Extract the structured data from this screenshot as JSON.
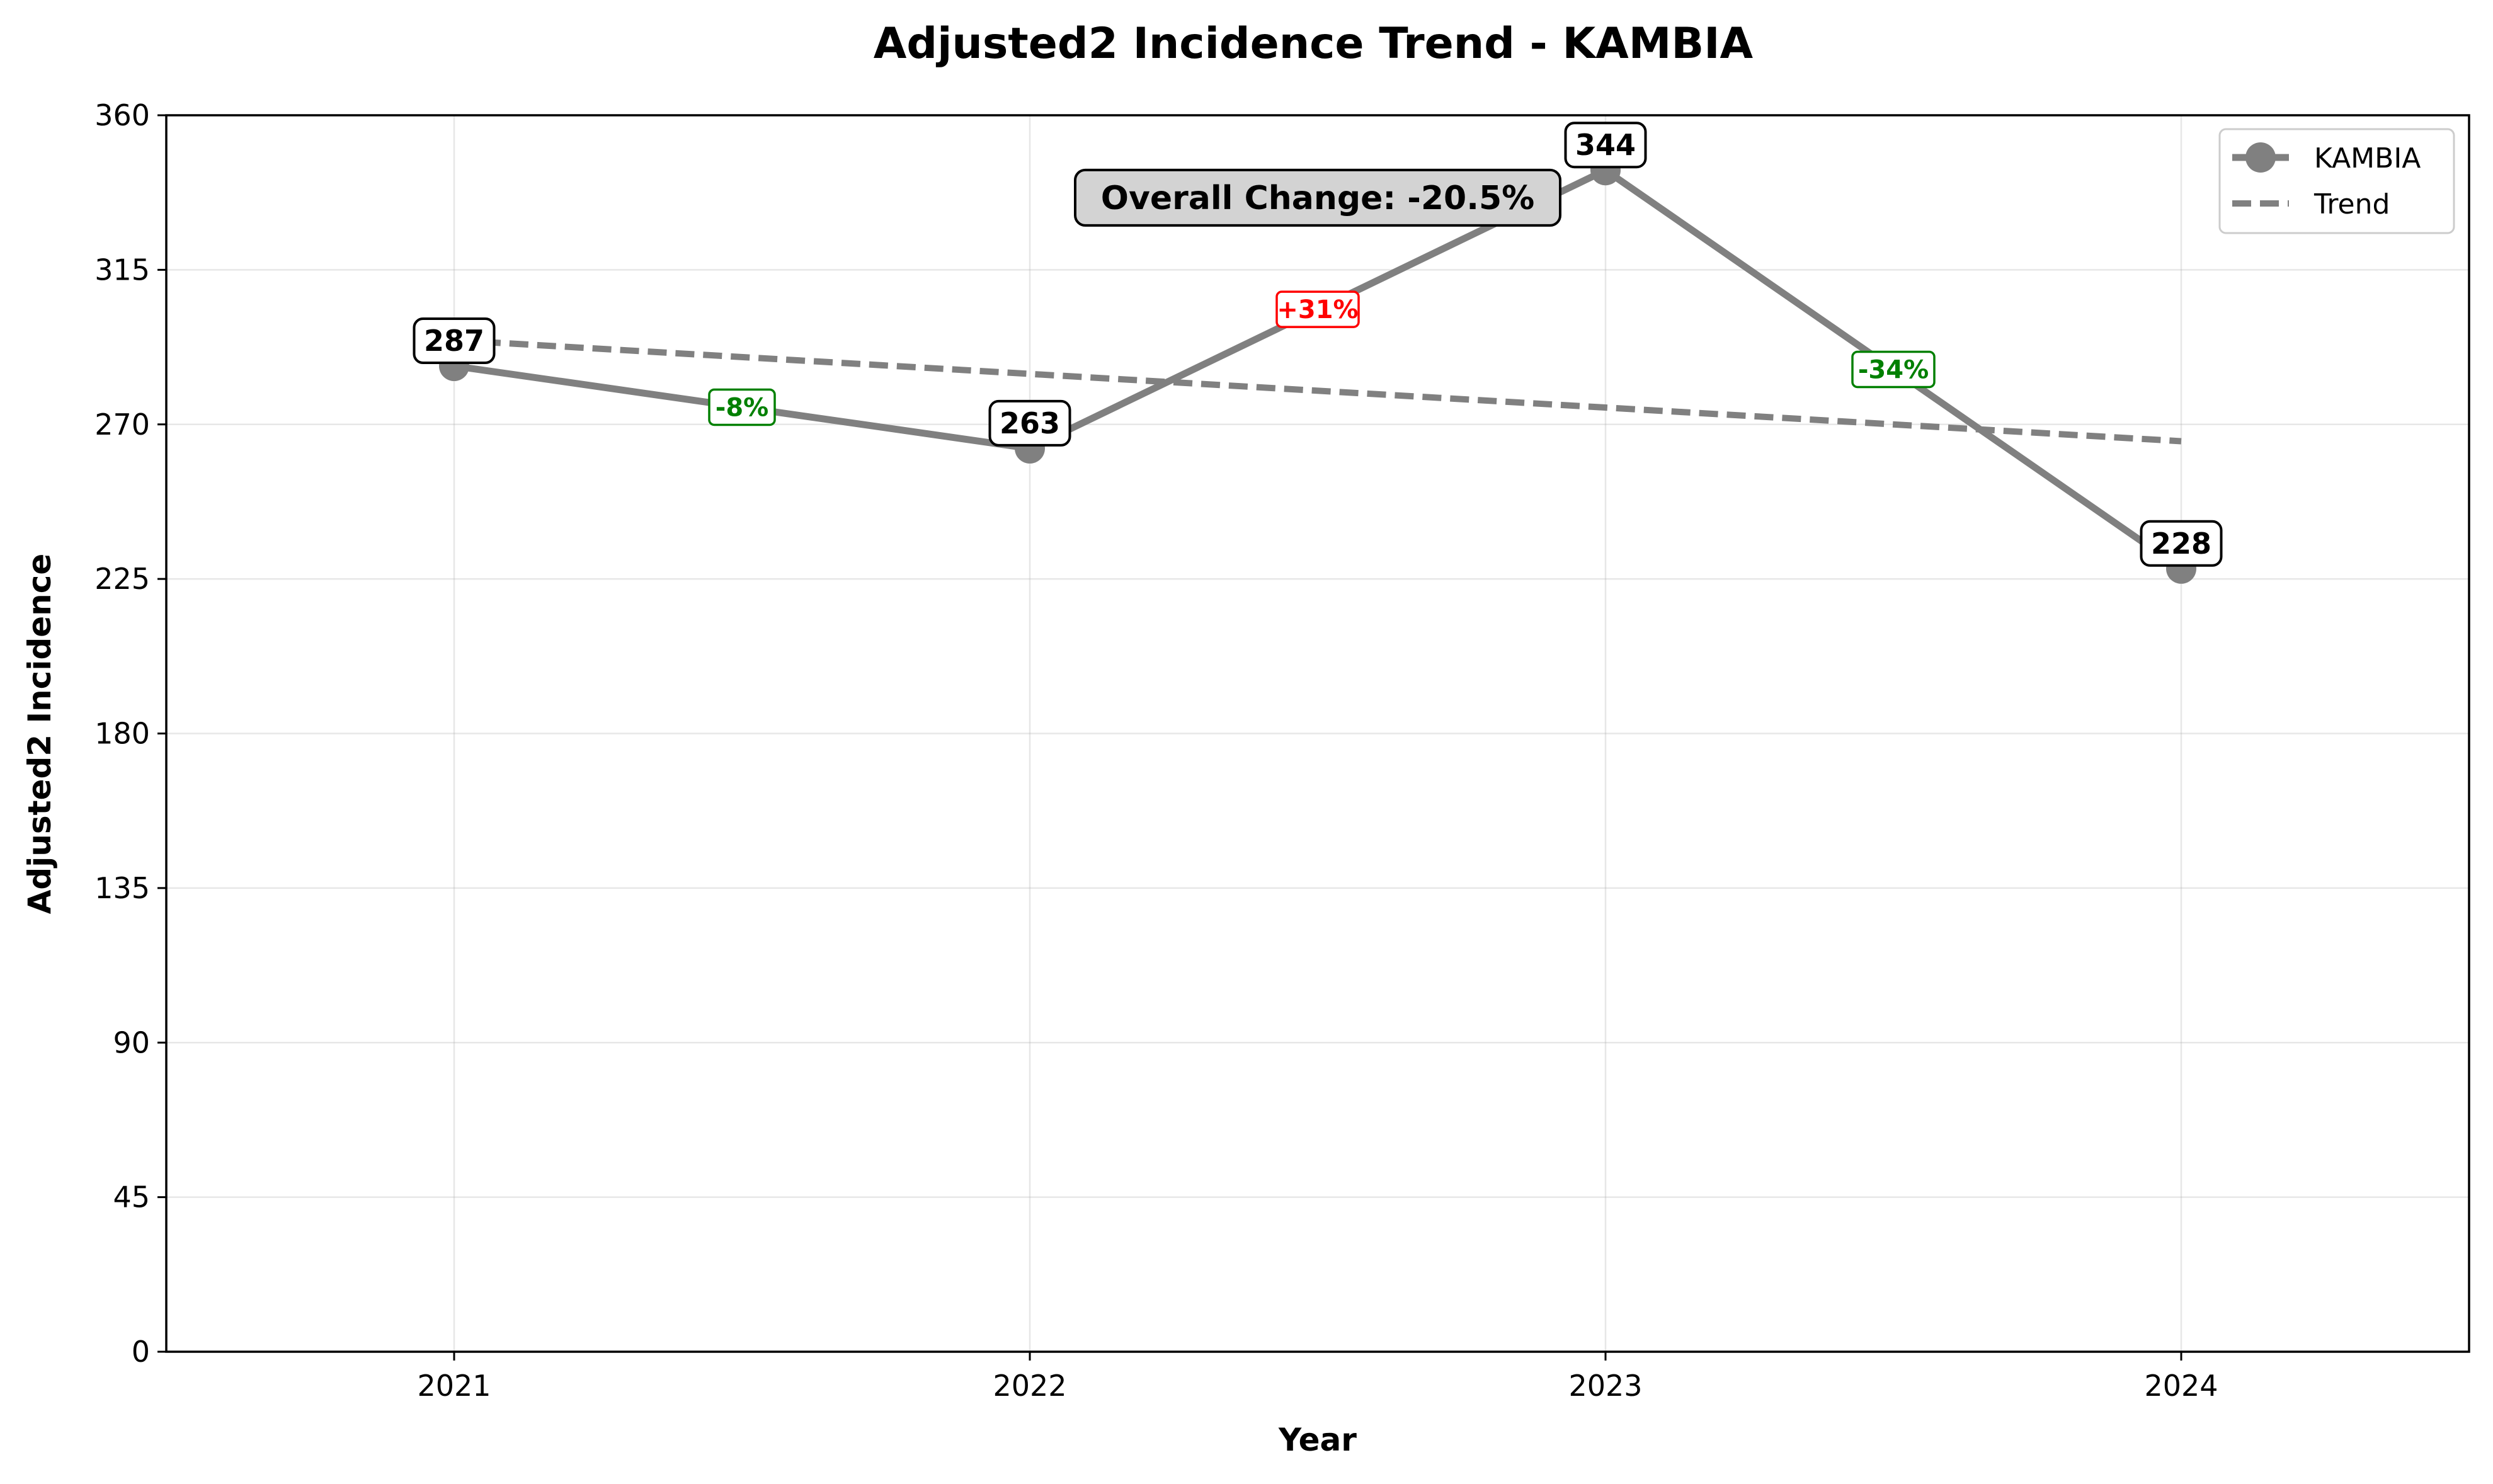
{
  "chart_data": {
    "type": "line",
    "title": "Adjusted2 Incidence Trend - KAMBIA",
    "xlabel": "Year",
    "ylabel": "Adjusted2 Incidence",
    "categories": [
      "2021",
      "2022",
      "2023",
      "2024"
    ],
    "series": [
      {
        "name": "KAMBIA",
        "values": [
          287,
          263,
          344,
          228
        ],
        "color": "#808080",
        "style": "solid-with-markers"
      },
      {
        "name": "Trend",
        "values": [
          294.5,
          284.7,
          274.9,
          265.1
        ],
        "color": "#808080",
        "style": "dashed"
      }
    ],
    "data_labels": [
      "287",
      "263",
      "344",
      "228"
    ],
    "change_labels": [
      {
        "from": "2021",
        "to": "2022",
        "text": "-8%",
        "color": "#008000"
      },
      {
        "from": "2022",
        "to": "2023",
        "text": "+31%",
        "color": "#ff0000"
      },
      {
        "from": "2023",
        "to": "2024",
        "text": "-34%",
        "color": "#008000"
      }
    ],
    "annotation": {
      "text": "Overall Change: -20.5%",
      "background": "#d3d3d3"
    },
    "yticks": [
      "0",
      "45",
      "90",
      "135",
      "180",
      "225",
      "270",
      "315",
      "360"
    ],
    "ylim": [
      0,
      360
    ],
    "xlim": [
      -0.5,
      3.5
    ],
    "grid": true,
    "legend_position": "top-right"
  }
}
